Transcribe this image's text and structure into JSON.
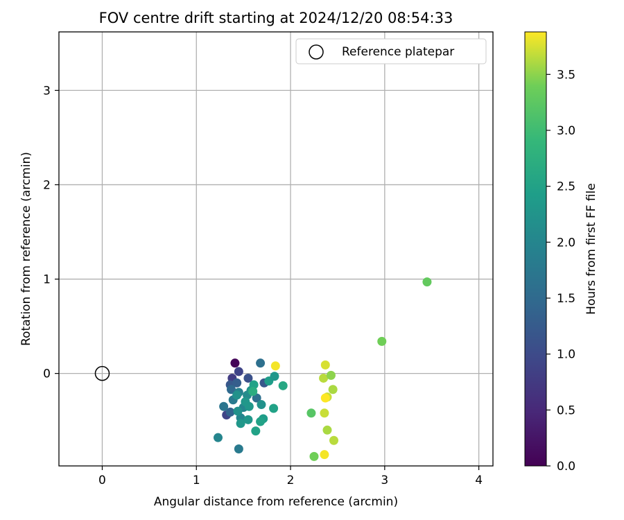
{
  "chart_data": {
    "type": "scatter",
    "title": "FOV centre drift starting at 2024/12/20 08:54:33",
    "xlabel": "Angular distance from reference (arcmin)",
    "ylabel": "Rotation from reference (arcmin)",
    "xlim": [
      -0.46,
      4.15
    ],
    "ylim": [
      -0.98,
      3.62
    ],
    "xticks": [
      0,
      1,
      2,
      3,
      4
    ],
    "yticks": [
      0,
      1,
      2,
      3
    ],
    "grid": true,
    "legend": {
      "placement": "upper right",
      "entries": [
        "Reference platepar"
      ]
    },
    "reference_point": {
      "x": 0.0,
      "y": 0.0,
      "label": "Reference platepar"
    },
    "colorbar": {
      "label": "Hours from first FF file",
      "colormap": "viridis",
      "min": 0.0,
      "max": 3.88,
      "ticks": [
        0.0,
        0.5,
        1.0,
        1.5,
        2.0,
        2.5,
        3.0,
        3.5
      ]
    },
    "points": [
      {
        "x": 1.41,
        "y": 0.11,
        "h": 0.05
      },
      {
        "x": 1.45,
        "y": 0.02,
        "h": 0.9
      },
      {
        "x": 1.38,
        "y": -0.05,
        "h": 0.8
      },
      {
        "x": 1.32,
        "y": -0.44,
        "h": 0.9
      },
      {
        "x": 1.55,
        "y": -0.05,
        "h": 1.1
      },
      {
        "x": 1.36,
        "y": -0.12,
        "h": 1.2
      },
      {
        "x": 1.43,
        "y": -0.1,
        "h": 1.3
      },
      {
        "x": 1.72,
        "y": -0.1,
        "h": 1.2
      },
      {
        "x": 1.36,
        "y": -0.41,
        "h": 1.4
      },
      {
        "x": 1.37,
        "y": -0.17,
        "h": 1.5
      },
      {
        "x": 1.64,
        "y": -0.26,
        "h": 1.6
      },
      {
        "x": 1.68,
        "y": 0.11,
        "h": 1.6
      },
      {
        "x": 1.29,
        "y": -0.35,
        "h": 1.7
      },
      {
        "x": 1.39,
        "y": -0.28,
        "h": 1.8
      },
      {
        "x": 1.45,
        "y": -0.2,
        "h": 1.9
      },
      {
        "x": 1.5,
        "y": -0.36,
        "h": 2.0
      },
      {
        "x": 1.47,
        "y": -0.47,
        "h": 2.0
      },
      {
        "x": 1.54,
        "y": -0.23,
        "h": 2.1
      },
      {
        "x": 1.58,
        "y": -0.18,
        "h": 2.2
      },
      {
        "x": 1.44,
        "y": -0.4,
        "h": 2.2
      },
      {
        "x": 1.69,
        "y": -0.33,
        "h": 2.2
      },
      {
        "x": 1.52,
        "y": -0.3,
        "h": 2.3
      },
      {
        "x": 1.47,
        "y": -0.53,
        "h": 2.3
      },
      {
        "x": 1.55,
        "y": -0.49,
        "h": 2.3
      },
      {
        "x": 1.23,
        "y": -0.68,
        "h": 2.0
      },
      {
        "x": 1.45,
        "y": -0.8,
        "h": 1.8
      },
      {
        "x": 1.71,
        "y": -0.48,
        "h": 2.4
      },
      {
        "x": 1.68,
        "y": -0.51,
        "h": 2.5
      },
      {
        "x": 1.63,
        "y": -0.61,
        "h": 2.5
      },
      {
        "x": 1.61,
        "y": -0.12,
        "h": 2.5
      },
      {
        "x": 1.77,
        "y": -0.08,
        "h": 2.4
      },
      {
        "x": 1.82,
        "y": -0.37,
        "h": 2.5
      },
      {
        "x": 1.83,
        "y": -0.03,
        "h": 2.3
      },
      {
        "x": 1.92,
        "y": -0.13,
        "h": 2.6
      },
      {
        "x": 1.56,
        "y": -0.35,
        "h": 2.3
      },
      {
        "x": 1.43,
        "y": -0.23,
        "h": 2.2
      },
      {
        "x": 1.6,
        "y": -0.19,
        "h": 2.7
      },
      {
        "x": 1.84,
        "y": 0.08,
        "h": 3.85
      },
      {
        "x": 2.37,
        "y": 0.09,
        "h": 3.75
      },
      {
        "x": 2.35,
        "y": -0.05,
        "h": 3.65
      },
      {
        "x": 2.43,
        "y": -0.02,
        "h": 3.5
      },
      {
        "x": 2.45,
        "y": -0.17,
        "h": 3.6
      },
      {
        "x": 2.39,
        "y": -0.25,
        "h": 3.7
      },
      {
        "x": 2.37,
        "y": -0.26,
        "h": 3.88
      },
      {
        "x": 2.22,
        "y": -0.42,
        "h": 3.2
      },
      {
        "x": 2.36,
        "y": -0.42,
        "h": 3.7
      },
      {
        "x": 2.39,
        "y": -0.6,
        "h": 3.6
      },
      {
        "x": 2.46,
        "y": -0.71,
        "h": 3.65
      },
      {
        "x": 2.25,
        "y": -0.88,
        "h": 3.4
      },
      {
        "x": 2.36,
        "y": -0.86,
        "h": 3.85
      },
      {
        "x": 2.97,
        "y": 0.34,
        "h": 3.4
      },
      {
        "x": 3.45,
        "y": 0.97,
        "h": 3.3
      }
    ]
  }
}
